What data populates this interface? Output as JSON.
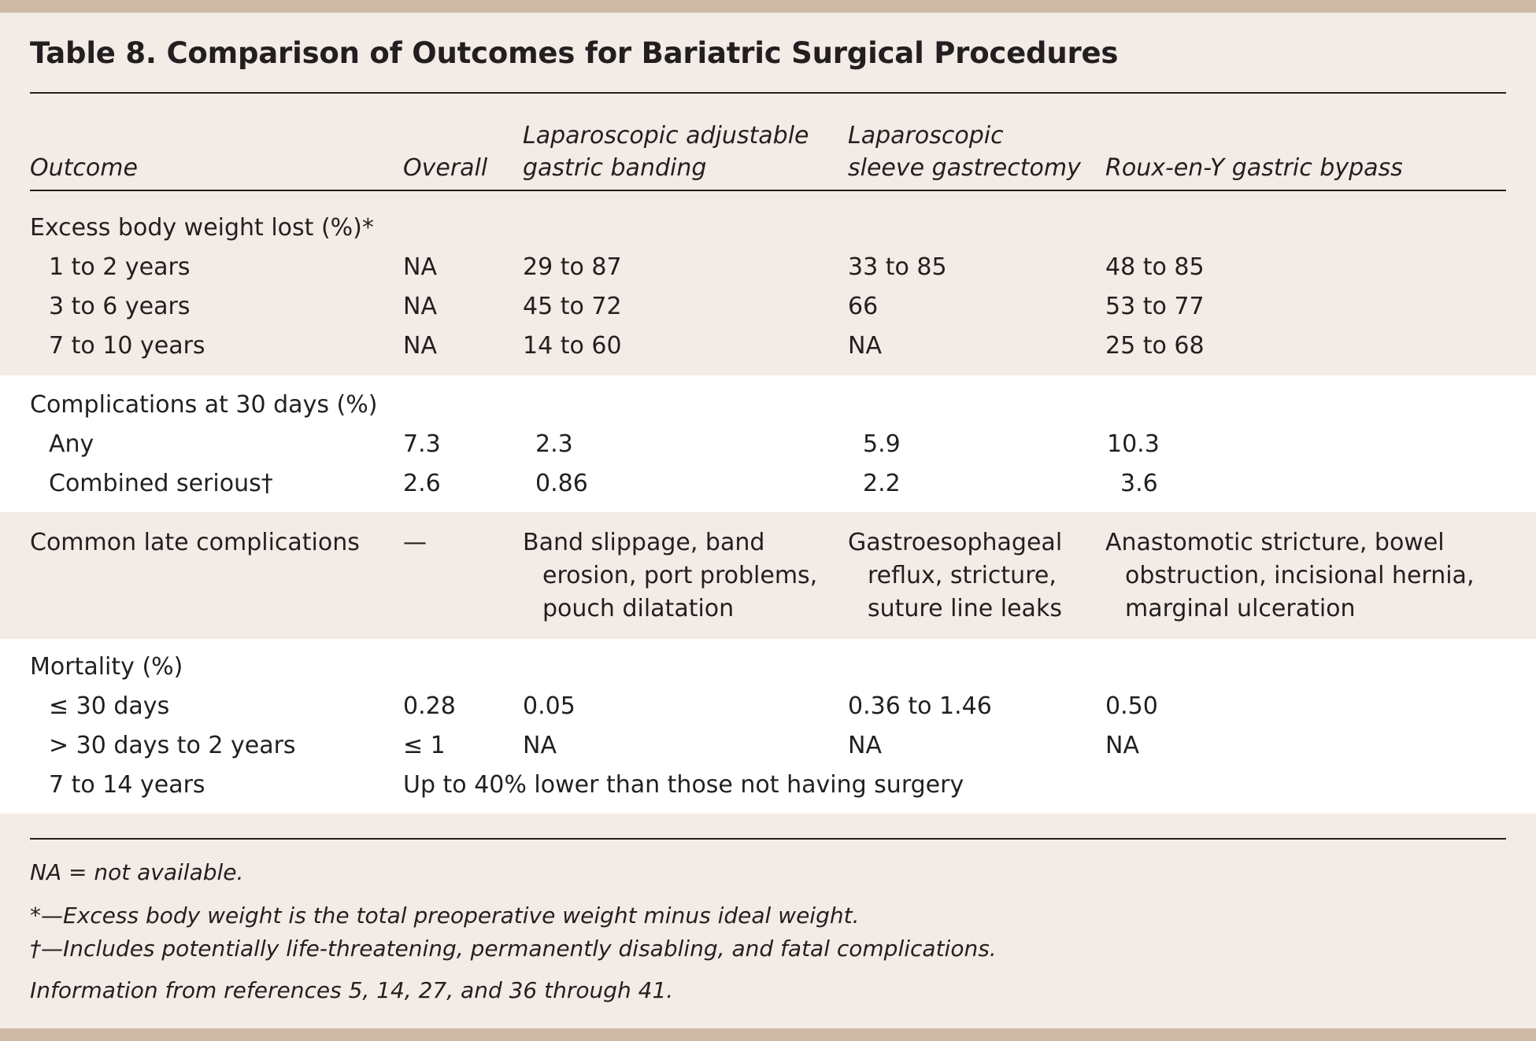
{
  "title": "Table 8. Comparison of Outcomes for Bariatric Surgical Procedures",
  "columns": {
    "outcome": "Outcome",
    "overall": "Overall",
    "lagb_1": "Laparoscopic adjustable",
    "lagb_2": "gastric banding",
    "lsg_1": "Laparoscopic",
    "lsg_2": "sleeve gastrectomy",
    "rygb": "Roux-en-Y gastric bypass"
  },
  "ebwl": {
    "label": "Excess body weight lost (%)*",
    "rows": [
      {
        "label": "1 to 2 years",
        "overall": "NA",
        "lagb": "29 to 87",
        "lsg": "33 to 85",
        "rygb": "48 to 85"
      },
      {
        "label": "3 to 6 years",
        "overall": "NA",
        "lagb": "45 to 72",
        "lsg": "66",
        "rygb": "53 to 77"
      },
      {
        "label": "7 to 10 years",
        "overall": "NA",
        "lagb": "14 to 60",
        "lsg": "NA",
        "rygb": "25 to 68"
      }
    ]
  },
  "complications30": {
    "label": "Complications at 30 days (%)",
    "rows": [
      {
        "label": "Any",
        "overall": "7.3",
        "lagb": "2.3",
        "lsg": "5.9",
        "rygb": "10.3"
      },
      {
        "label": "Combined serious†",
        "overall": "2.6",
        "lagb": "0.86",
        "lsg": "2.2",
        "rygb": "3.6"
      }
    ]
  },
  "late": {
    "label": "Common late complications",
    "overall": "—",
    "lagb": [
      "Band slippage, band",
      "erosion, port problems,",
      "pouch dilatation"
    ],
    "lsg": [
      "Gastroesophageal",
      "reflux, stricture,",
      "suture line leaks"
    ],
    "rygb": [
      "Anastomotic stricture, bowel",
      "obstruction, incisional hernia,",
      "marginal ulceration"
    ]
  },
  "mortality": {
    "label": "Mortality (%)",
    "rows": [
      {
        "label": "≤ 30 days",
        "overall": "0.28",
        "lagb": "0.05",
        "lsg": "0.36 to 1.46",
        "rygb": "0.50"
      },
      {
        "label": "> 30 days to 2 years",
        "overall": "≤ 1",
        "lagb": "NA",
        "lsg": "NA",
        "rygb": "NA"
      }
    ],
    "long_label": "7 to 14 years",
    "long_value": "Up to 40% lower than those not having surgery"
  },
  "footnotes": {
    "na": "NA = not available.",
    "star": "*—Excess body weight is the total preoperative weight minus ideal weight.",
    "dagger": "†—Includes potentially life-threatening, permanently disabling, and fatal complications.",
    "source": "Information from references 5, 14, 27, and 36 through 41."
  }
}
